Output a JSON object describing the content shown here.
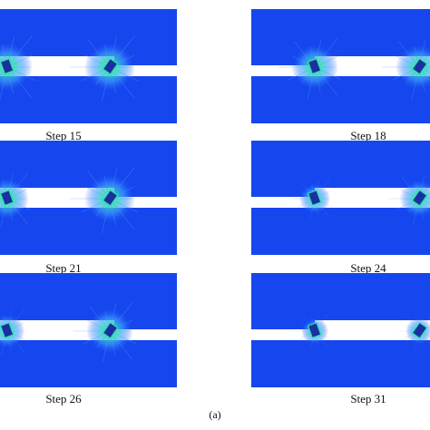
{
  "figure_label": "(a)",
  "panels": [
    {
      "caption": "Step 15"
    },
    {
      "caption": "Step 18"
    },
    {
      "caption": "Step 21"
    },
    {
      "caption": "Step 24"
    },
    {
      "caption": "Step 26"
    },
    {
      "caption": "Step 31"
    }
  ],
  "colors": {
    "field": "#1646ee",
    "slot": "#ffffff",
    "stress_low": "#3fa0ff",
    "stress_mid": "#2ee0b0",
    "stress_high": "#b8ff40"
  }
}
